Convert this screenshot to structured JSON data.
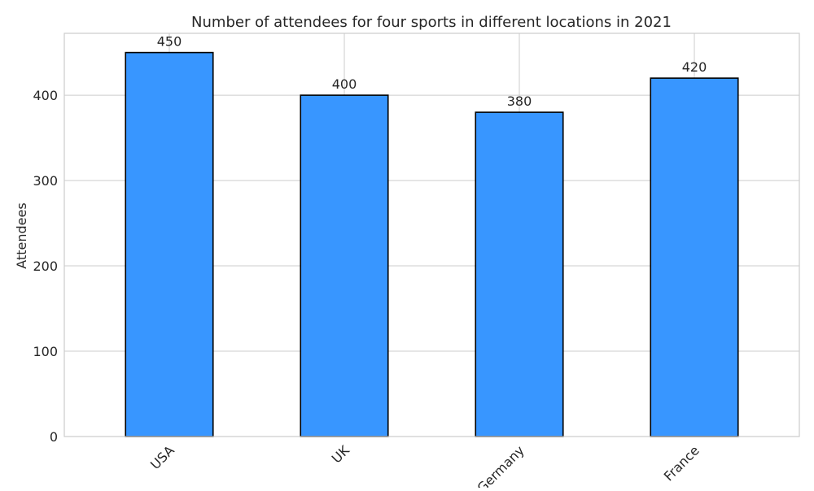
{
  "chart_data": {
    "type": "bar",
    "title": "Number of attendees for four sports in different locations in 2021",
    "xlabel": "",
    "ylabel": "Attendees",
    "categories": [
      "USA",
      "UK",
      "Germany",
      "France"
    ],
    "values": [
      450,
      400,
      380,
      420
    ],
    "data_labels": [
      "450",
      "400",
      "380",
      "420"
    ],
    "ylim": [
      0,
      472.5
    ],
    "yticks": [
      0,
      100,
      200,
      300,
      400
    ],
    "ytick_labels": [
      "0",
      "100",
      "200",
      "300",
      "400"
    ],
    "grid": true,
    "legend": "none",
    "colors": {
      "bar_fill": "#3896FF",
      "bar_edge": "#000000",
      "grid": "#CCCCCC",
      "axes_edge": "#CCCCCC",
      "text": "#262626"
    }
  }
}
